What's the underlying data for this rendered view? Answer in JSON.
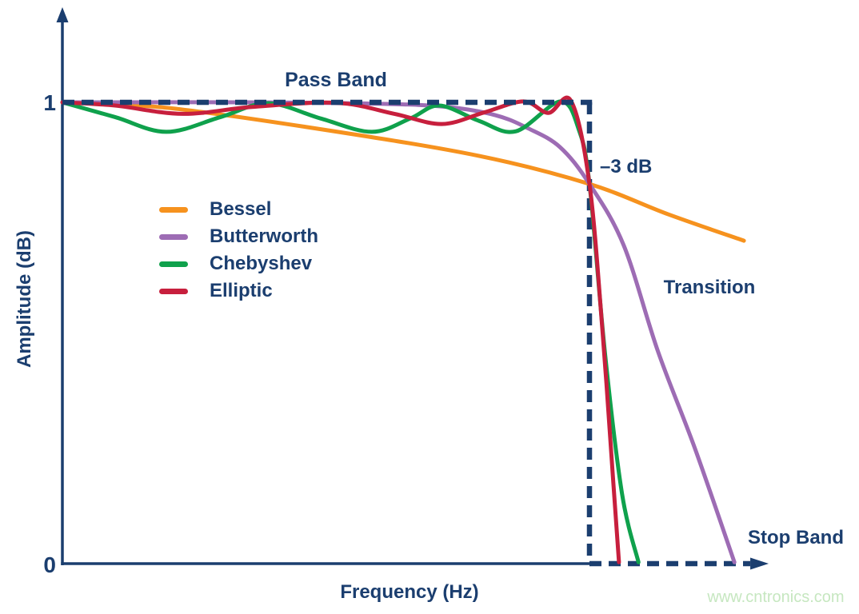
{
  "colors": {
    "axis": "#1b3e6f",
    "ideal_dashed": "#1b3e6f",
    "text": "#1b3e6f",
    "watermark": "#c6e7c0",
    "background": "#ffffff"
  },
  "watermark": {
    "text": "www.cntronics.com"
  },
  "chart_data": {
    "type": "line",
    "title": "",
    "x_axis": {
      "label": "Frequency (Hz)",
      "range": [
        0,
        1.34
      ],
      "ticks": []
    },
    "y_axis": {
      "label": "Amplitude (dB)",
      "range": [
        0,
        1
      ],
      "ticks": [
        {
          "value": 0,
          "label": "0"
        },
        {
          "value": 1,
          "label": "1"
        }
      ]
    },
    "grid": false,
    "legend_position": "inside-left",
    "annotations": {
      "pass_band": "Pass Band",
      "minus_3db": "–3 dB",
      "transition": "Transition",
      "stop_band": "Stop Band"
    },
    "ideal_response": {
      "amplitude": 1,
      "cutoff_frequency": 1.0,
      "stopband_end_frequency": 1.305,
      "arrow_tip_frequency": 1.34,
      "style": "dashed"
    },
    "minus_3db_crossing": {
      "frequency": 1.0,
      "amplitude": 0.823
    },
    "series": [
      {
        "name": "Bessel",
        "color": "#f6921e",
        "points": [
          [
            0,
            1.0
          ],
          [
            0.2,
            0.988
          ],
          [
            0.5,
            0.94
          ],
          [
            0.79,
            0.884
          ],
          [
            1.0,
            0.823
          ],
          [
            1.15,
            0.757
          ],
          [
            1.293,
            0.7
          ]
        ]
      },
      {
        "name": "Butterworth",
        "color": "#9d6cb4",
        "points": [
          [
            0,
            1.0
          ],
          [
            0.35,
            1.0
          ],
          [
            0.6,
            0.997
          ],
          [
            0.73,
            0.99
          ],
          [
            0.822,
            0.972
          ],
          [
            0.883,
            0.944
          ],
          [
            0.944,
            0.903
          ],
          [
            1.0,
            0.823
          ],
          [
            1.065,
            0.69
          ],
          [
            1.13,
            0.46
          ],
          [
            1.2,
            0.25
          ],
          [
            1.275,
            0.003
          ]
        ]
      },
      {
        "name": "Chebyshev",
        "color": "#0fa14c",
        "points": [
          [
            0,
            1.0
          ],
          [
            0.1,
            0.968
          ],
          [
            0.197,
            0.936
          ],
          [
            0.3,
            0.968
          ],
          [
            0.39,
            0.998
          ],
          [
            0.49,
            0.965
          ],
          [
            0.587,
            0.936
          ],
          [
            0.66,
            0.965
          ],
          [
            0.715,
            0.993
          ],
          [
            0.79,
            0.96
          ],
          [
            0.86,
            0.937
          ],
          [
            0.945,
            1.002
          ],
          [
            0.98,
            0.94
          ],
          [
            1.0,
            0.823
          ],
          [
            1.03,
            0.45
          ],
          [
            1.062,
            0.15
          ],
          [
            1.093,
            0.003
          ]
        ]
      },
      {
        "name": "Elliptic",
        "color": "#c71f3d",
        "points": [
          [
            0,
            1.0
          ],
          [
            0.1,
            0.993
          ],
          [
            0.228,
            0.975
          ],
          [
            0.36,
            0.99
          ],
          [
            0.52,
            0.999
          ],
          [
            0.63,
            0.975
          ],
          [
            0.72,
            0.953
          ],
          [
            0.8,
            0.978
          ],
          [
            0.875,
            1.002
          ],
          [
            0.922,
            0.977
          ],
          [
            0.965,
            1.003
          ],
          [
            1.0,
            0.823
          ],
          [
            1.025,
            0.5
          ],
          [
            1.045,
            0.18
          ],
          [
            1.056,
            0.003
          ]
        ]
      }
    ]
  }
}
